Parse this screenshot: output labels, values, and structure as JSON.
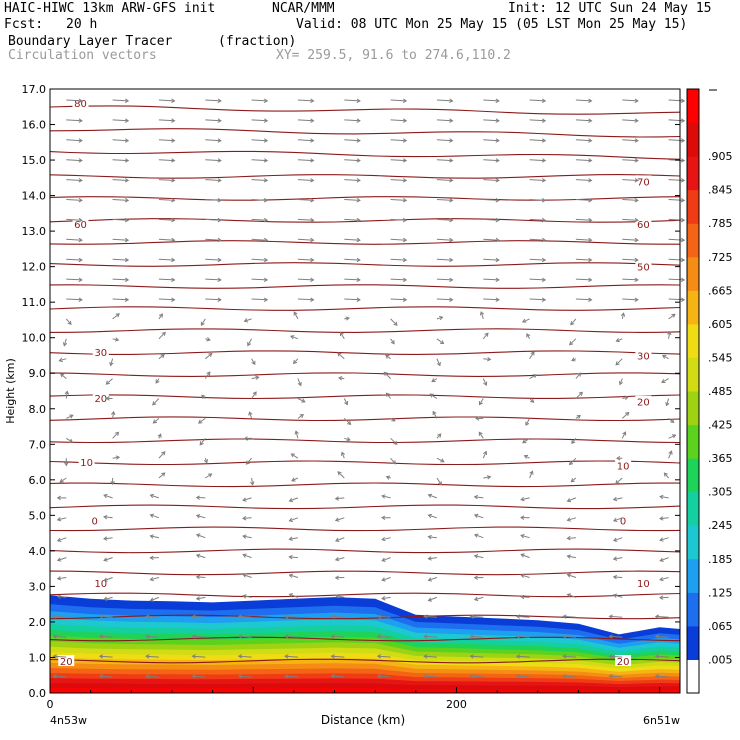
{
  "header": {
    "model": "HAIC-HIWC 13km ARW-GFS init",
    "org": "NCAR/MMM",
    "init": "Init: 12 UTC Sun 24 May 15",
    "fcst_label": "Fcst:",
    "fcst_value": "20 h",
    "valid": "Valid: 08 UTC Mon 25 May 15 (05 LST Mon 25 May 15)",
    "field": "Boundary Layer Tracer",
    "units": "(fraction)",
    "overlay": "Circulation vectors",
    "xy": "XY= 259.5, 91.6 to 274.6,110.2"
  },
  "colors": {
    "contour": "#8b1a1a",
    "vector": "#7f7f7f",
    "scale": [
      "#ffffff",
      "#0a3cd8",
      "#1e6ef0",
      "#1ea0f0",
      "#1ec8d0",
      "#14d0a0",
      "#1ed25a",
      "#5ad21e",
      "#a0d214",
      "#d2dc14",
      "#f0dc14",
      "#f5b414",
      "#f58c14",
      "#f56414",
      "#f03c14",
      "#e61414",
      "#dc0a0a",
      "#ff0000"
    ]
  },
  "chart_data": {
    "type": "heatmap",
    "xlabel": "Distance (km)",
    "ylabel": "Height (km)",
    "xlim": [
      0,
      310
    ],
    "ylim": [
      0,
      17
    ],
    "x_ticks": [
      0,
      200
    ],
    "x_tick_labels": [
      "0",
      "200"
    ],
    "x_endpoints": [
      "4n53w",
      "6n51w"
    ],
    "y_ticks": [
      0,
      1,
      2,
      3,
      4,
      5,
      6,
      7,
      8,
      9,
      10,
      11,
      12,
      13,
      14,
      15,
      16,
      17
    ],
    "y_tick_labels": [
      "0.0",
      "1.0",
      "2.0",
      "3.0",
      "4.0",
      "5.0",
      "6.0",
      "7.0",
      "8.0",
      "9.0",
      "10.0",
      "11.0",
      "12.0",
      "13.0",
      "14.0",
      "15.0",
      "16.0",
      "17.0"
    ],
    "colorbar_labels": [
      ".005",
      ".065",
      ".125",
      ".185",
      ".245",
      ".305",
      ".365",
      ".425",
      ".485",
      ".545",
      ".605",
      ".665",
      ".725",
      ".785",
      ".845",
      ".905"
    ],
    "colorbar_levels": [
      0.005,
      0.065,
      0.125,
      0.185,
      0.245,
      0.305,
      0.365,
      0.425,
      0.485,
      0.545,
      0.605,
      0.665,
      0.725,
      0.785,
      0.845,
      0.905
    ],
    "boundary_layer_top_km": {
      "x": [
        0,
        20,
        40,
        60,
        80,
        100,
        120,
        140,
        160,
        180,
        200,
        220,
        240,
        260,
        280,
        300,
        310
      ],
      "top": [
        2.75,
        2.65,
        2.6,
        2.58,
        2.55,
        2.6,
        2.65,
        2.7,
        2.65,
        2.2,
        2.15,
        2.1,
        2.05,
        1.95,
        1.65,
        1.85,
        1.8
      ]
    },
    "contour_labels": [
      {
        "label": "80",
        "x": 15,
        "y": 16.6
      },
      {
        "label": "70",
        "x": 292,
        "y": 14.4
      },
      {
        "label": "60",
        "x": 15,
        "y": 13.2
      },
      {
        "label": "60",
        "x": 292,
        "y": 13.2
      },
      {
        "label": "50",
        "x": 292,
        "y": 12.0
      },
      {
        "label": "30",
        "x": 25,
        "y": 9.6
      },
      {
        "label": "30",
        "x": 292,
        "y": 9.5
      },
      {
        "label": "20",
        "x": 25,
        "y": 8.3
      },
      {
        "label": "20",
        "x": 292,
        "y": 8.2
      },
      {
        "label": "10",
        "x": 18,
        "y": 6.5
      },
      {
        "label": "10",
        "x": 282,
        "y": 6.4
      },
      {
        "label": "0",
        "x": 22,
        "y": 4.85
      },
      {
        "label": "0",
        "x": 282,
        "y": 4.85
      },
      {
        "label": "10",
        "x": 25,
        "y": 3.1
      },
      {
        "label": "10",
        "x": 292,
        "y": 3.1
      },
      {
        "label": "20",
        "x": 8,
        "y": 0.9
      },
      {
        "label": "20",
        "x": 282,
        "y": 0.9
      }
    ]
  }
}
